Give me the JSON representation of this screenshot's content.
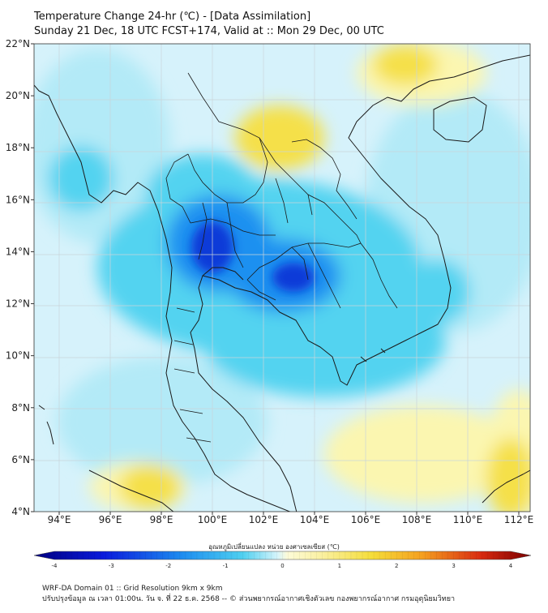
{
  "header": {
    "title_line1": "Temperature Change 24-hr (℃) - [Data Assimilation]",
    "title_line2": "Sunday 21 Dec, 18 UTC FCST+174, Valid at :: Mon 29 Dec, 00 UTC"
  },
  "map": {
    "lat_labels": [
      "22°N",
      "20°N",
      "18°N",
      "16°N",
      "14°N",
      "12°N",
      "10°N",
      "8°N",
      "6°N",
      "4°N"
    ],
    "lon_labels": [
      "94°E",
      "96°E",
      "98°E",
      "100°E",
      "102°E",
      "104°E",
      "106°E",
      "108°E",
      "110°E",
      "112°E"
    ],
    "colors": {
      "background": "#d6f2fb",
      "light_cyan": "#b3eaf7",
      "cyan": "#52d3f0",
      "blue": "#1e90f0",
      "dark_blue": "#0a3ad8",
      "pale_yellow": "#fbf6b0",
      "yellow": "#f5e04a",
      "land_line": "#1a1a1a"
    }
  },
  "colorbar": {
    "title": "อุณหภูมิเปลี่ยนแปลง หน่วย องศาเซลเซียส (℃)",
    "tick_labels": [
      "-4",
      "-3",
      "-2",
      "-1",
      "0",
      "1",
      "2",
      "3",
      "4"
    ],
    "min": -4,
    "max": 4
  },
  "footer": {
    "line1": "WRF-DA Domain 01 :: Grid Resolution 9km x 9km",
    "line2": "ปรับปรุงข้อมูล ณ เวลา 01:00น. วัน จ. ที่ 22 ธ.ค. 2568 -- © ส่วนพยากรณ์อากาศเชิงตัวเลข กองพยากรณ์อากาศ กรมอุตุนิยมวิทยา"
  }
}
